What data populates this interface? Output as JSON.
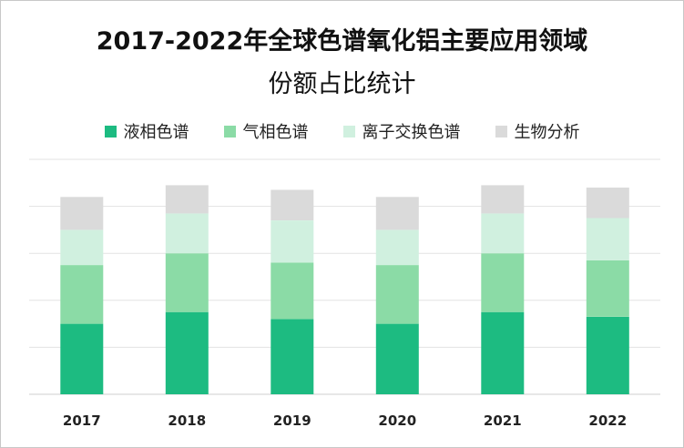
{
  "title_line1": "2017-2022年全球色谱氧化铝主要应用领域",
  "title_line2": "份额占比统计",
  "chart_data": {
    "type": "bar",
    "stacked": true,
    "categories": [
      "2017",
      "2018",
      "2019",
      "2020",
      "2021",
      "2022"
    ],
    "series": [
      {
        "name": "液相色谱",
        "color": "#1dbb81",
        "values": [
          30,
          35,
          32,
          30,
          35,
          33
        ]
      },
      {
        "name": "气相色谱",
        "color": "#8bdba6",
        "values": [
          25,
          25,
          24,
          25,
          25,
          24
        ]
      },
      {
        "name": "离子交换色谱",
        "color": "#d0f0df",
        "values": [
          15,
          17,
          18,
          15,
          17,
          18
        ]
      },
      {
        "name": "生物分析",
        "color": "#dadada",
        "values": [
          14,
          12,
          13,
          14,
          12,
          13
        ]
      }
    ],
    "ylim": [
      0,
      100
    ],
    "gridlines": true,
    "legend_position": "top"
  }
}
